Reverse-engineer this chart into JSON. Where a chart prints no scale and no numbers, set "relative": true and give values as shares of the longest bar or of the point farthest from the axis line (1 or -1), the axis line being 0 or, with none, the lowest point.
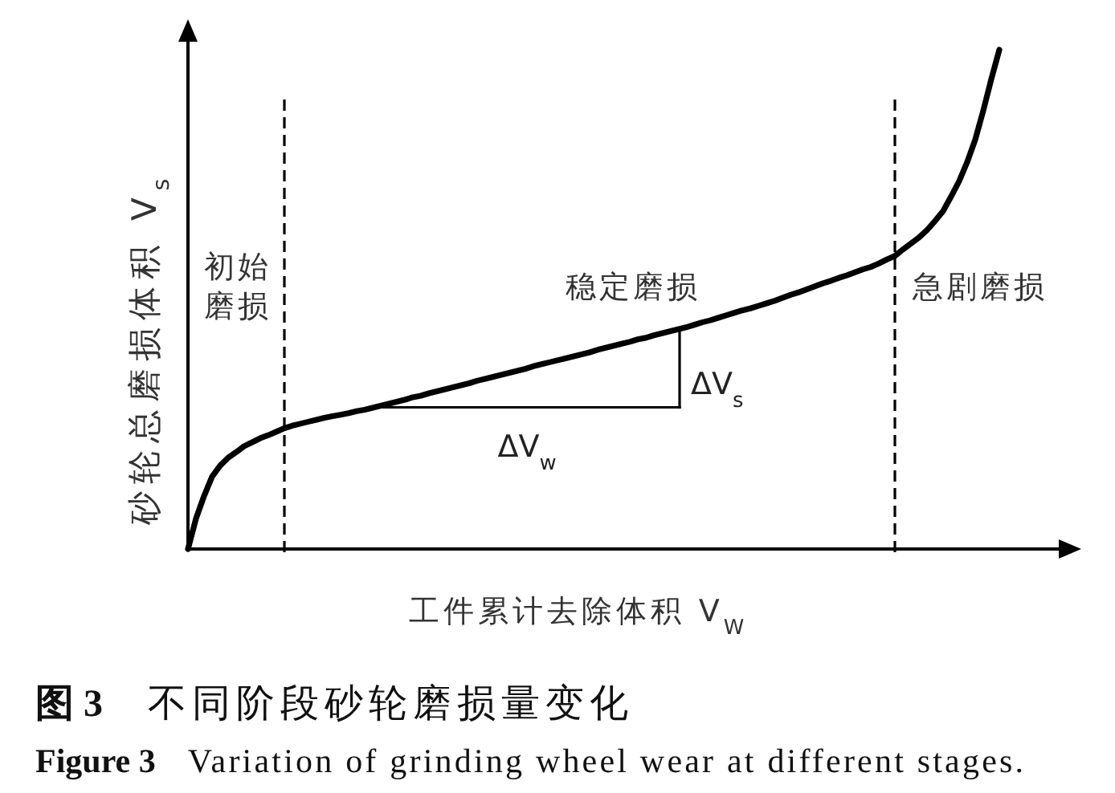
{
  "chart_data": {
    "type": "line",
    "title": "图 3  不同阶段砂轮磨损量变化",
    "subtitle": "Figure 3  Variation of grinding wheel wear at different stages.",
    "xlabel": "工件累计去除体积 V$_{W}$",
    "ylabel": "砂轮总磨损体积 V$_{s}$",
    "relative": true,
    "categories": [
      null,
      null,
      null,
      null,
      null,
      null,
      null,
      null,
      null,
      null,
      null,
      null,
      null,
      null,
      null,
      null,
      null,
      null,
      null,
      null,
      null,
      null,
      null,
      null,
      null,
      null,
      null,
      null,
      null,
      null,
      null,
      null,
      null,
      null,
      null,
      null,
      null,
      null,
      null,
      null,
      null,
      null,
      null,
      null,
      null,
      null,
      null,
      null,
      null,
      null,
      null,
      null,
      null,
      null,
      null,
      null,
      null,
      null,
      null,
      null,
      null,
      null,
      null,
      null,
      null,
      null,
      null,
      null,
      null,
      null,
      null,
      null,
      null,
      null,
      null,
      null,
      null,
      null,
      null,
      null,
      null,
      null,
      null,
      null,
      null,
      null,
      null,
      null,
      null,
      null,
      null,
      null,
      null,
      null,
      null,
      null,
      null,
      null,
      null,
      null,
      null,
      null
    ],
    "series": [
      {
        "color": "#000000",
        "values": [
          0,
          0.061,
          0.106,
          0.145,
          0.167,
          0.183,
          0.194,
          0.206,
          0.214,
          0.222,
          0.228,
          0.235,
          0.242,
          0.247,
          0.251,
          0.255,
          0.259,
          0.263,
          0.266,
          0.269,
          0.272,
          0.276,
          0.279,
          0.283,
          0.287,
          0.291,
          0.295,
          0.299,
          0.304,
          0.307,
          0.312,
          0.316,
          0.32,
          0.324,
          0.328,
          0.332,
          0.337,
          0.341,
          0.345,
          0.349,
          0.353,
          0.357,
          0.361,
          0.366,
          0.37,
          0.374,
          0.378,
          0.382,
          0.386,
          0.39,
          0.394,
          0.399,
          0.403,
          0.407,
          0.411,
          0.415,
          0.42,
          0.423,
          0.428,
          0.432,
          0.436,
          0.44,
          0.444,
          0.449,
          0.454,
          0.458,
          0.463,
          0.468,
          0.473,
          0.478,
          0.482,
          0.487,
          0.492,
          0.497,
          0.503,
          0.509,
          0.514,
          0.52,
          0.526,
          0.532,
          0.537,
          0.543,
          0.548,
          0.554,
          0.56,
          0.565,
          0.572,
          0.58,
          0.587,
          0.6,
          0.612,
          0.624,
          0.639,
          0.657,
          0.677,
          0.706,
          0.737,
          0.775,
          0.82,
          0.878,
          0.941,
          1
        ]
      }
    ],
    "annotations": [
      "初始磨损",
      "稳定磨损",
      "急剧磨损",
      "ΔV$_{w}$",
      "ΔV$_{s}$"
    ]
  }
}
